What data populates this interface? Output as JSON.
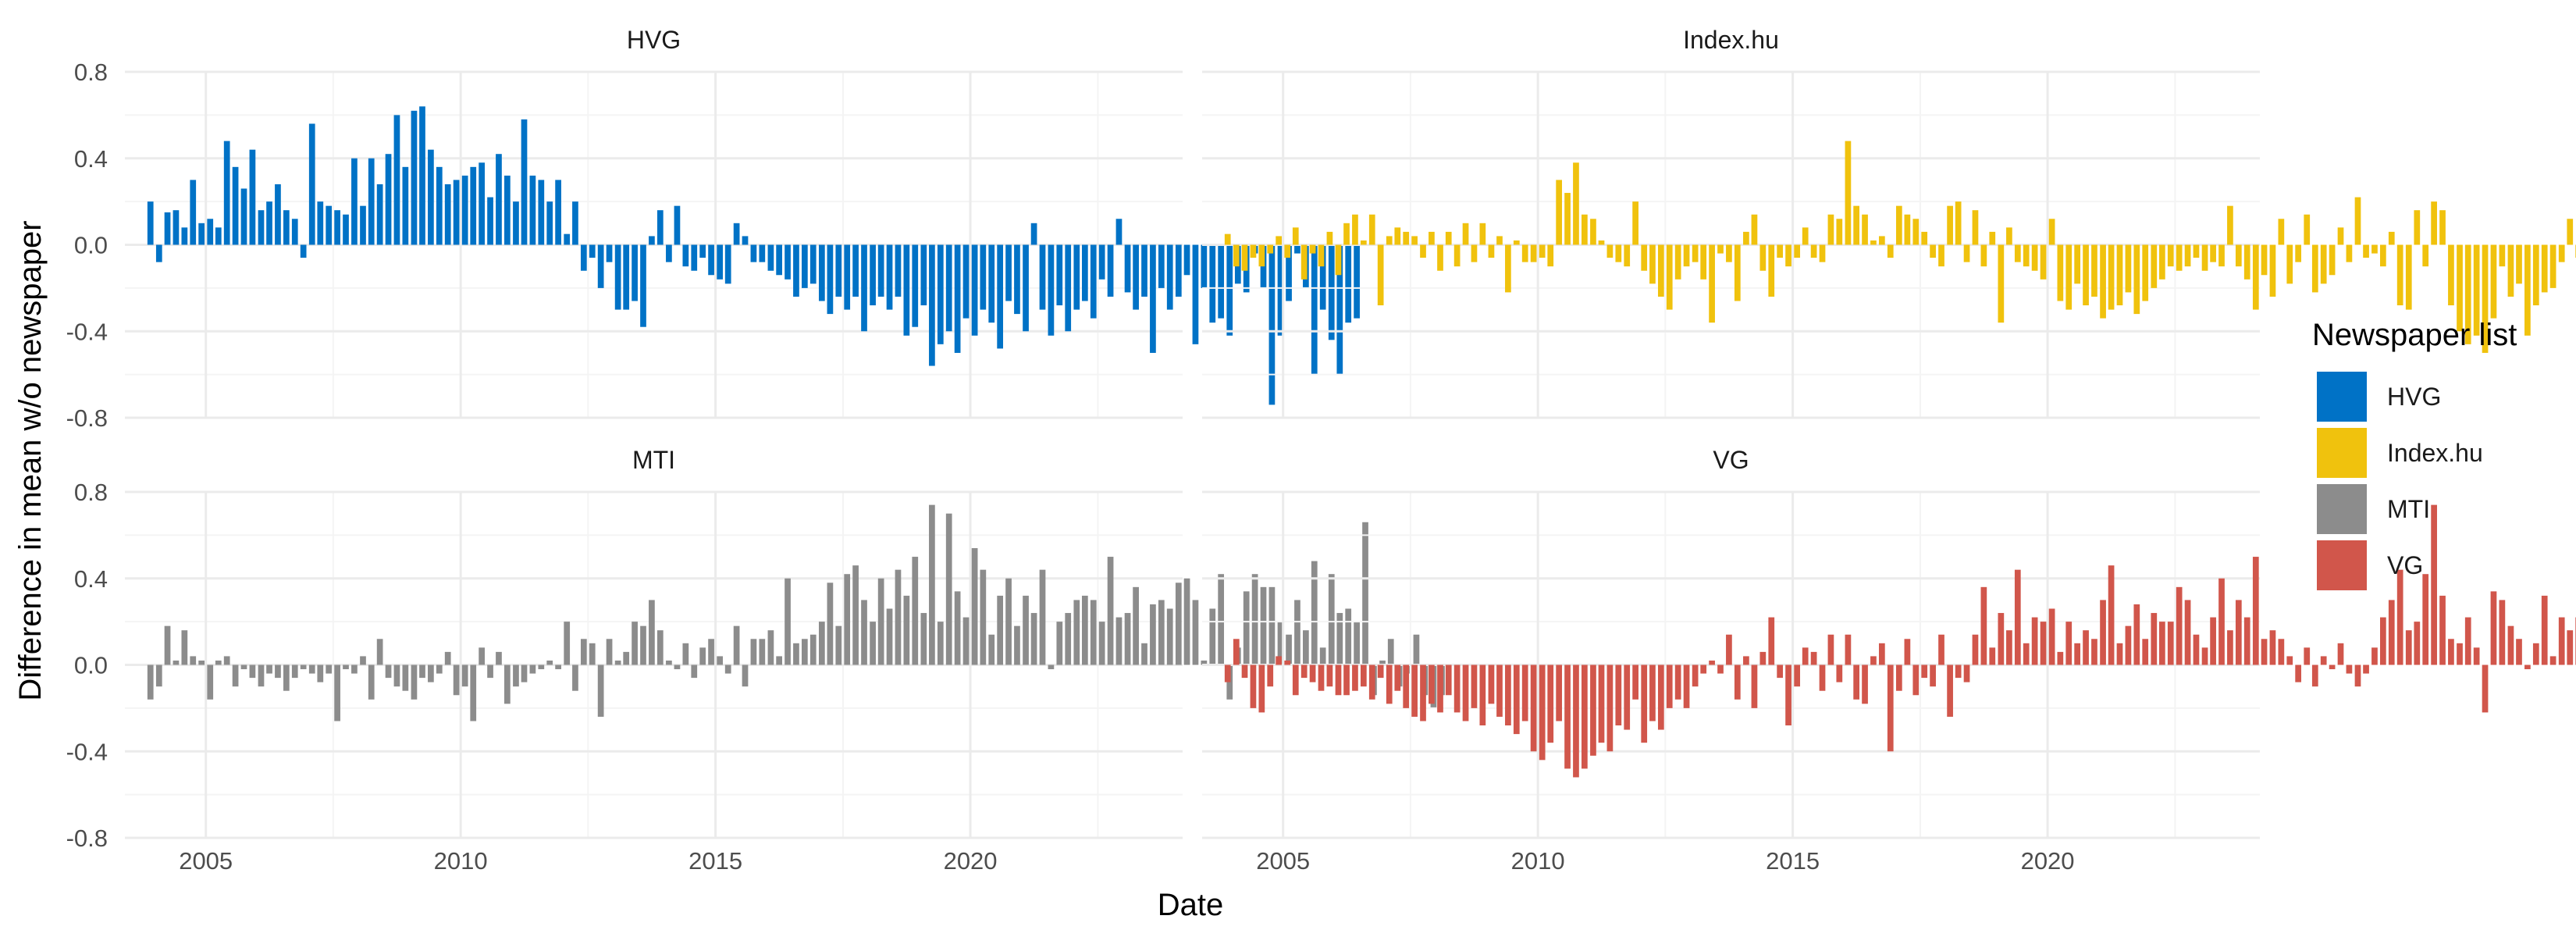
{
  "chart_data": {
    "type": "bar",
    "layout": "facet_wrap 2x2",
    "xlabel": "Date",
    "ylabel": "Difference in mean w/o newspaper",
    "xlim": [
      "2003-06-01",
      "2024-03-01"
    ],
    "ylim": [
      -0.8,
      0.8
    ],
    "x_ticks": [
      "2005",
      "2010",
      "2015",
      "2020"
    ],
    "y_ticks": [
      "0.8",
      "0.4",
      "0.0",
      "-0.4",
      "-0.8"
    ],
    "y_tick_values": [
      0.8,
      0.4,
      0.0,
      -0.4,
      -0.8
    ],
    "grid": true,
    "legend": {
      "title": "Newspaper list",
      "position": "right",
      "items": [
        {
          "name": "HVG",
          "color": "#0072C6"
        },
        {
          "name": "Index.hu",
          "color": "#F0C20D"
        },
        {
          "name": "MTI",
          "color": "#8C8C8C"
        },
        {
          "name": "VG",
          "color": "#D1564B"
        }
      ]
    },
    "x_start": "2003-12",
    "x_end": "2023-06",
    "x_step": "2 months",
    "panels": [
      {
        "name": "HVG",
        "color": "#0072C6",
        "values": [
          0.2,
          -0.08,
          0.15,
          0.16,
          0.08,
          0.3,
          0.1,
          0.12,
          0.08,
          0.48,
          0.36,
          0.26,
          0.44,
          0.16,
          0.2,
          0.28,
          0.16,
          0.12,
          -0.06,
          0.56,
          0.2,
          0.18,
          0.16,
          0.14,
          0.4,
          0.18,
          0.4,
          0.28,
          0.42,
          0.6,
          0.36,
          0.62,
          0.64,
          0.44,
          0.36,
          0.28,
          0.3,
          0.32,
          0.36,
          0.38,
          0.22,
          0.42,
          0.32,
          0.2,
          0.58,
          0.32,
          0.3,
          0.2,
          0.3,
          0.05,
          0.2,
          -0.12,
          -0.06,
          -0.2,
          -0.08,
          -0.3,
          -0.3,
          -0.26,
          -0.38,
          0.04,
          0.16,
          -0.08,
          0.18,
          -0.1,
          -0.12,
          -0.06,
          -0.14,
          -0.16,
          -0.18,
          0.1,
          0.04,
          -0.08,
          -0.08,
          -0.12,
          -0.14,
          -0.16,
          -0.24,
          -0.2,
          -0.18,
          -0.26,
          -0.32,
          -0.24,
          -0.3,
          -0.24,
          -0.4,
          -0.28,
          -0.24,
          -0.3,
          -0.24,
          -0.42,
          -0.38,
          -0.28,
          -0.56,
          -0.46,
          -0.4,
          -0.5,
          -0.34,
          -0.42,
          -0.3,
          -0.36,
          -0.48,
          -0.26,
          -0.32,
          -0.4,
          0.1,
          -0.3,
          -0.42,
          -0.28,
          -0.4,
          -0.3,
          -0.26,
          -0.34,
          -0.16,
          -0.24,
          0.12,
          -0.22,
          -0.3,
          -0.24,
          -0.5,
          -0.2,
          -0.3,
          -0.24,
          -0.14,
          -0.46,
          -0.2,
          -0.36,
          -0.34,
          -0.42,
          -0.18,
          -0.22,
          -0.04,
          -0.2,
          -0.74,
          -0.42,
          -0.26,
          -0.04,
          -0.2,
          -0.6,
          -0.3,
          -0.44,
          -0.6,
          -0.36,
          -0.34
        ]
      },
      {
        "name": "Index.hu",
        "color": "#F0C20D",
        "values": [
          0.05,
          -0.1,
          -0.12,
          -0.06,
          -0.1,
          -0.04,
          0.04,
          -0.06,
          0.08,
          -0.16,
          -0.04,
          -0.1,
          0.06,
          -0.14,
          0.1,
          0.14,
          0.02,
          0.14,
          -0.28,
          0.04,
          0.08,
          0.06,
          0.04,
          -0.06,
          0.06,
          -0.12,
          0.06,
          -0.1,
          0.1,
          -0.08,
          0.1,
          -0.06,
          0.04,
          -0.22,
          0.02,
          -0.08,
          -0.08,
          -0.06,
          -0.1,
          0.3,
          0.24,
          0.38,
          0.14,
          0.12,
          0.02,
          -0.06,
          -0.08,
          -0.1,
          0.2,
          -0.12,
          -0.18,
          -0.24,
          -0.3,
          -0.16,
          -0.1,
          -0.08,
          -0.16,
          -0.36,
          -0.04,
          -0.08,
          -0.26,
          0.06,
          0.14,
          -0.12,
          -0.24,
          -0.06,
          -0.1,
          -0.06,
          0.08,
          -0.06,
          -0.08,
          0.14,
          0.12,
          0.48,
          0.18,
          0.14,
          0.02,
          0.04,
          -0.06,
          0.18,
          0.14,
          0.12,
          0.06,
          -0.06,
          -0.1,
          0.18,
          0.2,
          -0.08,
          0.16,
          -0.1,
          0.06,
          -0.36,
          0.08,
          -0.08,
          -0.1,
          -0.12,
          -0.16,
          0.12,
          -0.26,
          -0.3,
          -0.18,
          -0.28,
          -0.24,
          -0.34,
          -0.3,
          -0.28,
          -0.22,
          -0.32,
          -0.26,
          -0.2,
          -0.16,
          -0.1,
          -0.12,
          -0.1,
          -0.06,
          -0.12,
          -0.08,
          -0.1,
          0.18,
          -0.1,
          -0.16,
          -0.3,
          -0.14,
          -0.24,
          0.12,
          -0.18,
          -0.08,
          0.14,
          -0.22,
          -0.18,
          -0.14,
          0.08,
          -0.08,
          0.22,
          -0.06,
          -0.04,
          -0.1,
          0.06,
          -0.28,
          -0.3,
          0.16,
          -0.1,
          0.2,
          0.16,
          -0.28,
          -0.4,
          -0.46,
          -0.42,
          -0.5,
          -0.34,
          -0.1,
          -0.24,
          -0.18,
          -0.42,
          -0.28,
          -0.22,
          -0.2,
          -0.08,
          0.12,
          -0.06,
          0.22,
          0.04,
          0.1,
          -0.1,
          0.28,
          0.32,
          0.2,
          0.1,
          0.28,
          0.3,
          0.56,
          0.46
        ]
      },
      {
        "name": "MTI",
        "color": "#8C8C8C",
        "values": [
          -0.16,
          -0.1,
          0.18,
          0.02,
          0.16,
          0.04,
          0.02,
          -0.16,
          0.02,
          0.04,
          -0.1,
          -0.02,
          -0.06,
          -0.1,
          -0.04,
          -0.06,
          -0.12,
          -0.06,
          -0.02,
          -0.04,
          -0.08,
          -0.04,
          -0.26,
          -0.02,
          -0.04,
          0.04,
          -0.16,
          0.12,
          -0.06,
          -0.1,
          -0.12,
          -0.16,
          -0.06,
          -0.08,
          -0.04,
          0.06,
          -0.14,
          -0.1,
          -0.26,
          0.08,
          -0.06,
          0.06,
          -0.18,
          -0.1,
          -0.08,
          -0.04,
          -0.02,
          0.02,
          -0.02,
          0.2,
          -0.12,
          0.12,
          0.1,
          -0.24,
          0.12,
          0.02,
          0.06,
          0.2,
          0.18,
          0.3,
          0.16,
          0.02,
          -0.02,
          0.1,
          -0.06,
          0.08,
          0.12,
          0.04,
          -0.04,
          0.18,
          -0.1,
          0.12,
          0.12,
          0.16,
          0.04,
          0.4,
          0.1,
          0.12,
          0.14,
          0.2,
          0.38,
          0.18,
          0.42,
          0.46,
          0.3,
          0.2,
          0.4,
          0.26,
          0.44,
          0.32,
          0.5,
          0.24,
          0.74,
          0.2,
          0.7,
          0.34,
          0.22,
          0.54,
          0.44,
          0.14,
          0.32,
          0.4,
          0.18,
          0.32,
          0.24,
          0.44,
          -0.02,
          0.2,
          0.24,
          0.3,
          0.32,
          0.3,
          0.2,
          0.5,
          0.22,
          0.24,
          0.36,
          0.1,
          0.28,
          0.3,
          0.26,
          0.38,
          0.4,
          0.3,
          0.02,
          0.26,
          0.42,
          -0.16,
          0.08,
          0.34,
          0.42,
          0.36,
          0.36,
          0.2,
          0.14,
          0.3,
          0.16,
          0.48,
          0.08,
          0.42,
          0.24,
          0.26,
          0.2,
          0.66,
          -0.14,
          0.02,
          0.12,
          -0.1,
          -0.04,
          0.14,
          -0.14,
          -0.2,
          -0.14
        ]
      },
      {
        "name": "VG",
        "color": "#D1564B",
        "values": [
          -0.08,
          0.12,
          -0.06,
          -0.2,
          -0.22,
          -0.1,
          0.04,
          0.02,
          -0.14,
          -0.06,
          -0.08,
          -0.12,
          -0.1,
          -0.14,
          -0.14,
          -0.12,
          -0.1,
          -0.16,
          -0.06,
          -0.18,
          -0.12,
          -0.2,
          -0.24,
          -0.26,
          -0.18,
          -0.22,
          -0.14,
          -0.22,
          -0.26,
          -0.2,
          -0.28,
          -0.18,
          -0.24,
          -0.28,
          -0.32,
          -0.26,
          -0.4,
          -0.44,
          -0.36,
          -0.26,
          -0.48,
          -0.52,
          -0.48,
          -0.42,
          -0.36,
          -0.4,
          -0.28,
          -0.3,
          -0.16,
          -0.36,
          -0.26,
          -0.3,
          -0.2,
          -0.16,
          -0.2,
          -0.1,
          -0.04,
          0.02,
          -0.04,
          0.14,
          -0.16,
          0.04,
          -0.2,
          0.06,
          0.22,
          -0.06,
          -0.28,
          -0.1,
          0.08,
          0.06,
          -0.12,
          0.14,
          -0.08,
          0.14,
          -0.16,
          -0.18,
          0.04,
          0.1,
          -0.4,
          -0.12,
          0.12,
          -0.14,
          -0.06,
          -0.1,
          0.14,
          -0.24,
          -0.06,
          -0.08,
          0.14,
          0.36,
          0.08,
          0.24,
          0.16,
          0.44,
          0.1,
          0.22,
          0.2,
          0.26,
          0.06,
          0.2,
          0.1,
          0.16,
          0.12,
          0.3,
          0.46,
          0.1,
          0.18,
          0.28,
          0.12,
          0.24,
          0.2,
          0.2,
          0.36,
          0.3,
          0.14,
          0.08,
          0.22,
          0.4,
          0.16,
          0.3,
          0.22,
          0.5,
          0.12,
          0.16,
          0.12,
          0.04,
          -0.08,
          0.08,
          -0.1,
          0.04,
          -0.02,
          0.1,
          -0.04,
          -0.1,
          -0.04,
          0.08,
          0.22,
          0.3,
          0.44,
          0.16,
          0.2,
          0.42,
          0.74,
          0.32,
          0.12,
          0.1,
          0.22,
          0.08,
          -0.22,
          0.34,
          0.3,
          0.18,
          0.12,
          -0.02,
          0.1,
          0.32,
          0.04,
          0.22,
          0.16,
          0.22,
          0.2,
          0.04,
          -0.1
        ]
      }
    ]
  }
}
